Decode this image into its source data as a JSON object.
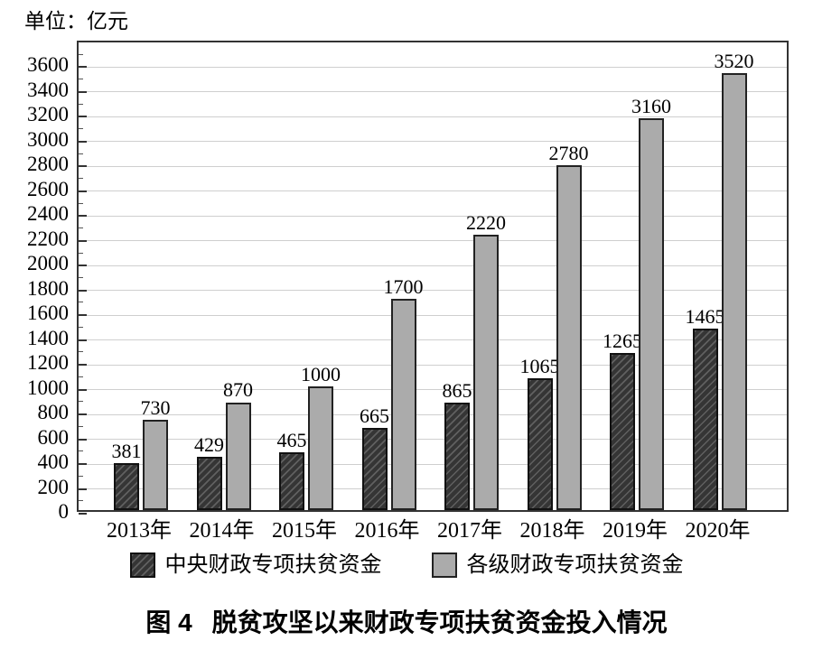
{
  "unit_label": "单位：亿元",
  "caption": {
    "prefix": "图 4",
    "title": "脱贫攻坚以来财政专项扶贫资金投入情况"
  },
  "colors": {
    "bar_dark_fill": "#353535",
    "bar_dark_hatch": "#606060",
    "bar_dark_border": "#111111",
    "bar_light_fill": "#ababab",
    "bar_light_border": "#222222",
    "gridline": "#cfcfcf",
    "frame": "#333333",
    "text": "#000000"
  },
  "chart_data": {
    "type": "bar",
    "title": "图 4 脱贫攻坚以来财政专项扶贫资金投入情况",
    "unit": "单位：亿元",
    "categories": [
      "2013年",
      "2014年",
      "2015年",
      "2016年",
      "2017年",
      "2018年",
      "2019年",
      "2020年"
    ],
    "series": [
      {
        "name": "中央财政专项扶贫资金",
        "style": "dark-hatched",
        "values": [
          381,
          429,
          465,
          665,
          865,
          1065,
          1265,
          1465
        ]
      },
      {
        "name": "各级财政专项扶贫资金",
        "style": "light-solid",
        "values": [
          730,
          870,
          1000,
          1700,
          2220,
          2780,
          3160,
          3520
        ]
      }
    ],
    "ylim": [
      0,
      3800
    ],
    "y_major_step": 200,
    "y_minor_step": 100,
    "y_ticks": [
      0,
      200,
      400,
      600,
      800,
      1000,
      1200,
      1400,
      1600,
      1800,
      2000,
      2200,
      2400,
      2600,
      2800,
      3000,
      3200,
      3400,
      3600
    ],
    "grid": "horizontal",
    "value_labels": "above-bars",
    "legend_position": "bottom"
  }
}
